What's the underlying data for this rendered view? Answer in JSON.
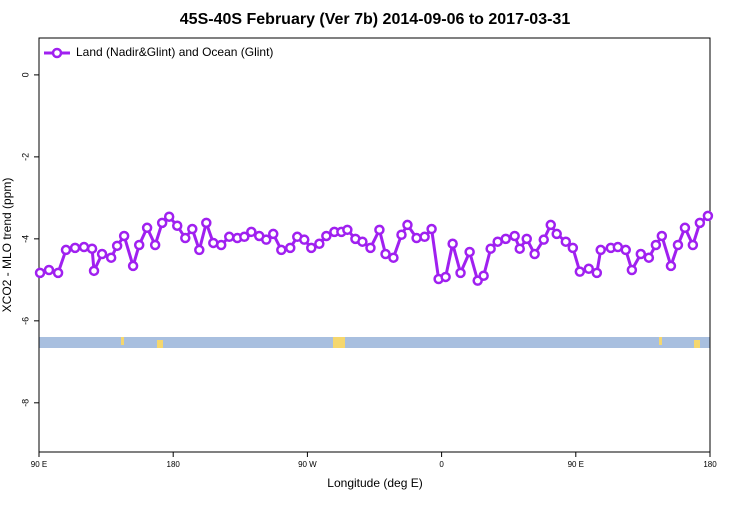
{
  "chart_data": {
    "type": "line",
    "title": "45S-40S February (Ver 7b)   2014-09-06 to 2017-03-31",
    "x_label": "Longitude (deg E)",
    "y_label": "XCO2 - MLO trend (ppm)",
    "xlim": [
      90,
      540
    ],
    "ylim": [
      -9.2,
      0.9
    ],
    "xticks": [
      {
        "value": 90,
        "label": "90 E"
      },
      {
        "value": 180,
        "label": "180"
      },
      {
        "value": 270,
        "label": "90 W"
      },
      {
        "value": 360,
        "label": "0"
      },
      {
        "value": 450,
        "label": "90 E"
      },
      {
        "value": 540,
        "label": "180"
      }
    ],
    "yticks": [
      0,
      -2,
      -4,
      -6,
      -8
    ],
    "legend": "top-left",
    "x": [
      90.7,
      96.7,
      102.8,
      108.1,
      114.2,
      120.2,
      125.6,
      126.9,
      132.3,
      138.4,
      142.4,
      147.1,
      153.1,
      157.2,
      162.5,
      167.9,
      172.6,
      177.3,
      182.7,
      188.1,
      192.8,
      197.5,
      202.2,
      206.9,
      212.2,
      217.6,
      223.0,
      227.7,
      232.4,
      237.7,
      242.4,
      247.1,
      252.5,
      258.5,
      263.2,
      267.9,
      272.6,
      278.0,
      282.7,
      288.1,
      292.8,
      296.8,
      302.2,
      306.9,
      312.3,
      318.3,
      322.4,
      327.7,
      333.1,
      337.1,
      343.2,
      348.6,
      353.3,
      358.0,
      362.7,
      367.4,
      372.7,
      378.8,
      384.2,
      388.2,
      392.9,
      397.6,
      403.0,
      409.0,
      412.4,
      417.1,
      422.4,
      428.5,
      433.2,
      437.2,
      443.3,
      448.0,
      452.7,
      458.7,
      464.1,
      466.7,
      473.5,
      478.2,
      483.5,
      487.6,
      493.6,
      499.0,
      503.7,
      507.7,
      513.8,
      518.5,
      523.2,
      528.5,
      533.2,
      538.6
    ],
    "series": [
      {
        "name": "Land (Nadir&Glint) and Ocean (Glint)",
        "color": "#a020f0",
        "values": [
          -4.83,
          -4.76,
          -4.83,
          -4.27,
          -4.22,
          -4.2,
          -4.24,
          -4.78,
          -4.37,
          -4.46,
          -4.17,
          -3.93,
          -4.66,
          -4.15,
          -3.73,
          -4.15,
          -3.61,
          -3.46,
          -3.68,
          -3.98,
          -3.76,
          -4.27,
          -3.61,
          -4.1,
          -4.15,
          -3.95,
          -3.98,
          -3.95,
          -3.83,
          -3.93,
          -4.02,
          -3.88,
          -4.27,
          -4.22,
          -3.95,
          -4.02,
          -4.22,
          -4.12,
          -3.93,
          -3.83,
          -3.83,
          -3.78,
          -4.0,
          -4.07,
          -4.22,
          -3.78,
          -4.37,
          -4.46,
          -3.9,
          -3.66,
          -3.98,
          -3.95,
          -3.76,
          -4.98,
          -4.93,
          -4.12,
          -4.83,
          -4.32,
          -5.02,
          -4.9,
          -4.24,
          -4.07,
          -4.0,
          -3.93,
          -4.24,
          -4.0,
          -4.37,
          -4.02,
          -3.66,
          -3.88,
          -4.07,
          -4.22,
          -4.8,
          -4.73,
          -4.83,
          -4.27,
          -4.22,
          -4.2,
          -4.27,
          -4.76,
          -4.37,
          -4.46,
          -4.15,
          -3.93,
          -4.66,
          -4.15,
          -3.73,
          -4.15,
          -3.61,
          -3.44
        ]
      }
    ]
  }
}
